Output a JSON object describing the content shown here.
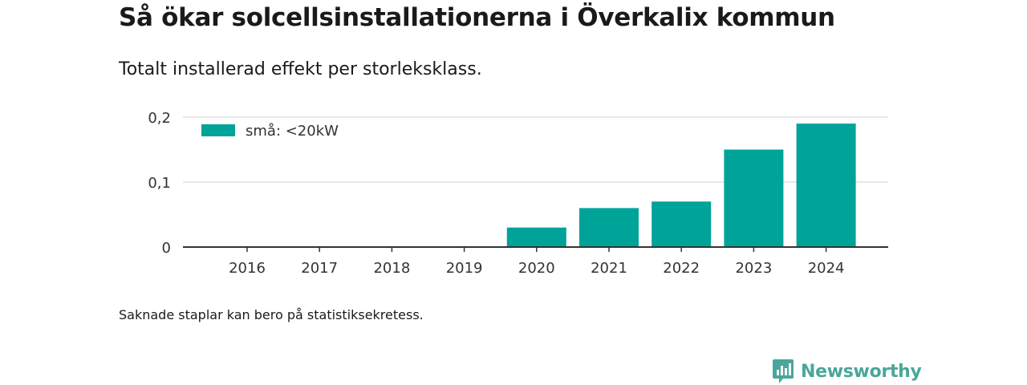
{
  "header": {
    "title": "Så ökar solcellsinstallationerna i Överkalix kommun",
    "subtitle": "Totalt installerad effekt per storleksklass."
  },
  "footer": {
    "note": "Saknade staplar kan bero på statistiksekretess.",
    "brand": "Newsworthy"
  },
  "colors": {
    "bar": "#00a398",
    "brand": "#4aa69a",
    "grid": "#d9d9d9",
    "axis": "#333333"
  },
  "chart_data": {
    "type": "bar",
    "categories": [
      "2016",
      "2017",
      "2018",
      "2019",
      "2020",
      "2021",
      "2022",
      "2023",
      "2024"
    ],
    "series": [
      {
        "name": "små: <20kW",
        "values": [
          0,
          0,
          0,
          0,
          0.03,
          0.06,
          0.07,
          0.15,
          0.19
        ]
      }
    ],
    "ylim": [
      0,
      0.2
    ],
    "yticks": [
      0,
      0.1,
      0.2
    ],
    "ytick_labels": [
      "0",
      "0,1",
      "0,2"
    ],
    "grid": true,
    "legend": "top-left"
  }
}
